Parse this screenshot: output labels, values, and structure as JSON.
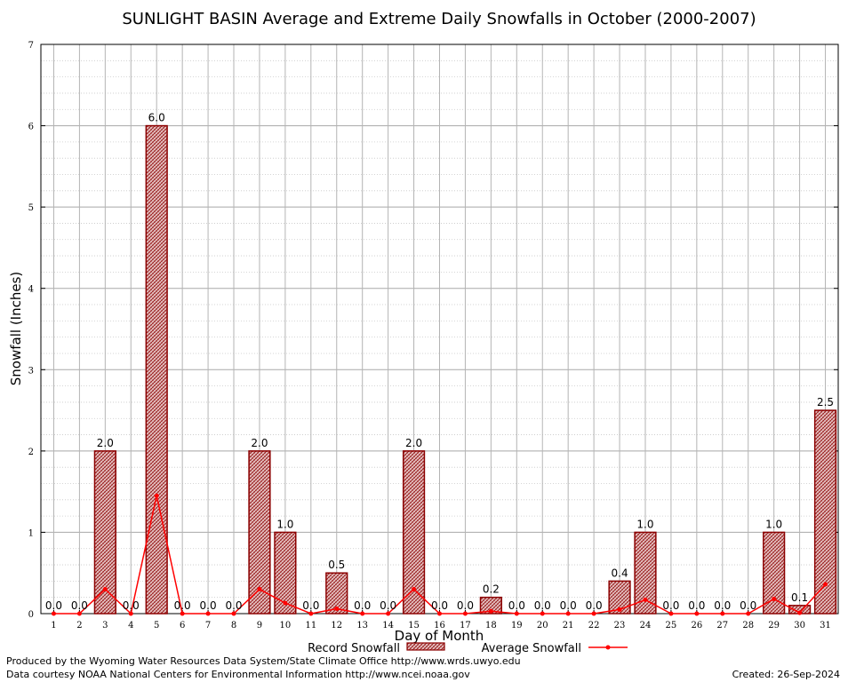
{
  "chart_data": {
    "type": "bar",
    "title": "SUNLIGHT BASIN Average and Extreme Daily Snowfalls in October (2000-2007)",
    "xlabel": "Day of Month",
    "ylabel": "Snowfall (Inches)",
    "ylim": [
      0,
      7
    ],
    "yticks": [
      "0",
      "1",
      "2",
      "3",
      "4",
      "5",
      "6",
      "7"
    ],
    "categories": [
      "1",
      "2",
      "3",
      "4",
      "5",
      "6",
      "7",
      "8",
      "9",
      "10",
      "11",
      "12",
      "13",
      "14",
      "15",
      "16",
      "17",
      "18",
      "19",
      "20",
      "21",
      "22",
      "23",
      "24",
      "25",
      "26",
      "27",
      "28",
      "29",
      "30",
      "31"
    ],
    "series": [
      {
        "name": "Record Snowfall",
        "kind": "bar",
        "color": "#8b0000",
        "values": [
          0,
          0,
          2,
          0,
          6,
          0,
          0,
          0,
          2,
          1,
          0,
          0.5,
          0,
          0,
          2,
          0,
          0,
          0.2,
          0,
          0,
          0,
          0,
          0.4,
          1,
          0,
          0,
          0,
          0,
          1,
          0.1,
          2.5
        ],
        "labels": [
          "0.0",
          "0.0",
          "2.0",
          "0.0",
          "6.0",
          "0.0",
          "0.0",
          "0.0",
          "2.0",
          "1.0",
          "0.0",
          "0.5",
          "0.0",
          "0.0",
          "2.0",
          "0.0",
          "0.0",
          "0.2",
          "0.0",
          "0.0",
          "0.0",
          "0.0",
          "0.4",
          "1.0",
          "0.0",
          "0.0",
          "0.0",
          "0.0",
          "1.0",
          "0.1",
          "2.5"
        ]
      },
      {
        "name": "Average Snowfall",
        "kind": "line",
        "color": "#ff0000",
        "values": [
          0,
          0,
          0.3,
          0,
          1.45,
          0,
          0,
          0,
          0.3,
          0.13,
          0,
          0.06,
          0,
          0,
          0.3,
          0,
          0,
          0.03,
          0,
          0,
          0,
          0,
          0.05,
          0.17,
          0,
          0,
          0,
          0,
          0.18,
          0.01,
          0.36
        ]
      }
    ],
    "grid": true,
    "legend": "bottom"
  },
  "footer": {
    "credit1": "Produced by the Wyoming Water Resources Data System/State Climate Office http://www.wrds.uwyo.edu",
    "credit2": "Data courtesy NOAA National Centers for Environmental Information http://www.ncei.noaa.gov",
    "created": "Created:  26-Sep-2024"
  }
}
